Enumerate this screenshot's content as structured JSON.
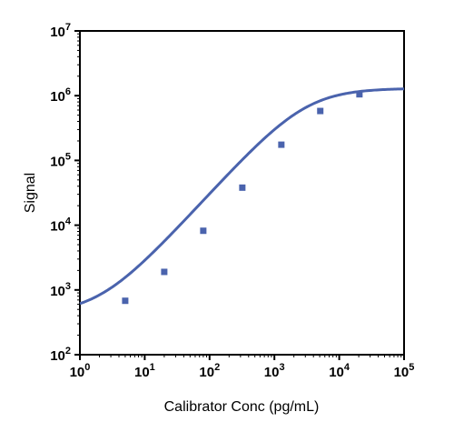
{
  "chart_data": {
    "type": "line",
    "xlabel": "Calibrator Conc (pg/mL)",
    "ylabel": "Signal",
    "x_scale": "log",
    "y_scale": "log",
    "xlim": [
      1,
      100000
    ],
    "ylim": [
      100,
      10000000
    ],
    "grid": false,
    "x_ticks": [
      {
        "base": "10",
        "exp": "0"
      },
      {
        "base": "10",
        "exp": "1"
      },
      {
        "base": "10",
        "exp": "2"
      },
      {
        "base": "10",
        "exp": "3"
      },
      {
        "base": "10",
        "exp": "4"
      },
      {
        "base": "10",
        "exp": "5"
      }
    ],
    "y_ticks": [
      {
        "base": "10",
        "exp": "2"
      },
      {
        "base": "10",
        "exp": "3"
      },
      {
        "base": "10",
        "exp": "4"
      },
      {
        "base": "10",
        "exp": "5"
      },
      {
        "base": "10",
        "exp": "6"
      },
      {
        "base": "10",
        "exp": "7"
      }
    ],
    "series": [
      {
        "color": "#4a63ad",
        "points": [
          {
            "x": 5,
            "y": 680
          },
          {
            "x": 20,
            "y": 1900
          },
          {
            "x": 80,
            "y": 8200
          },
          {
            "x": 320,
            "y": 38000
          },
          {
            "x": 1280,
            "y": 175000
          },
          {
            "x": 5100,
            "y": 580000
          },
          {
            "x": 20500,
            "y": 1050000
          }
        ],
        "fit": {
          "model": "4PL",
          "bottom": 420,
          "top": 1300000,
          "ec50": 3000,
          "hill": 1.1
        }
      }
    ]
  }
}
